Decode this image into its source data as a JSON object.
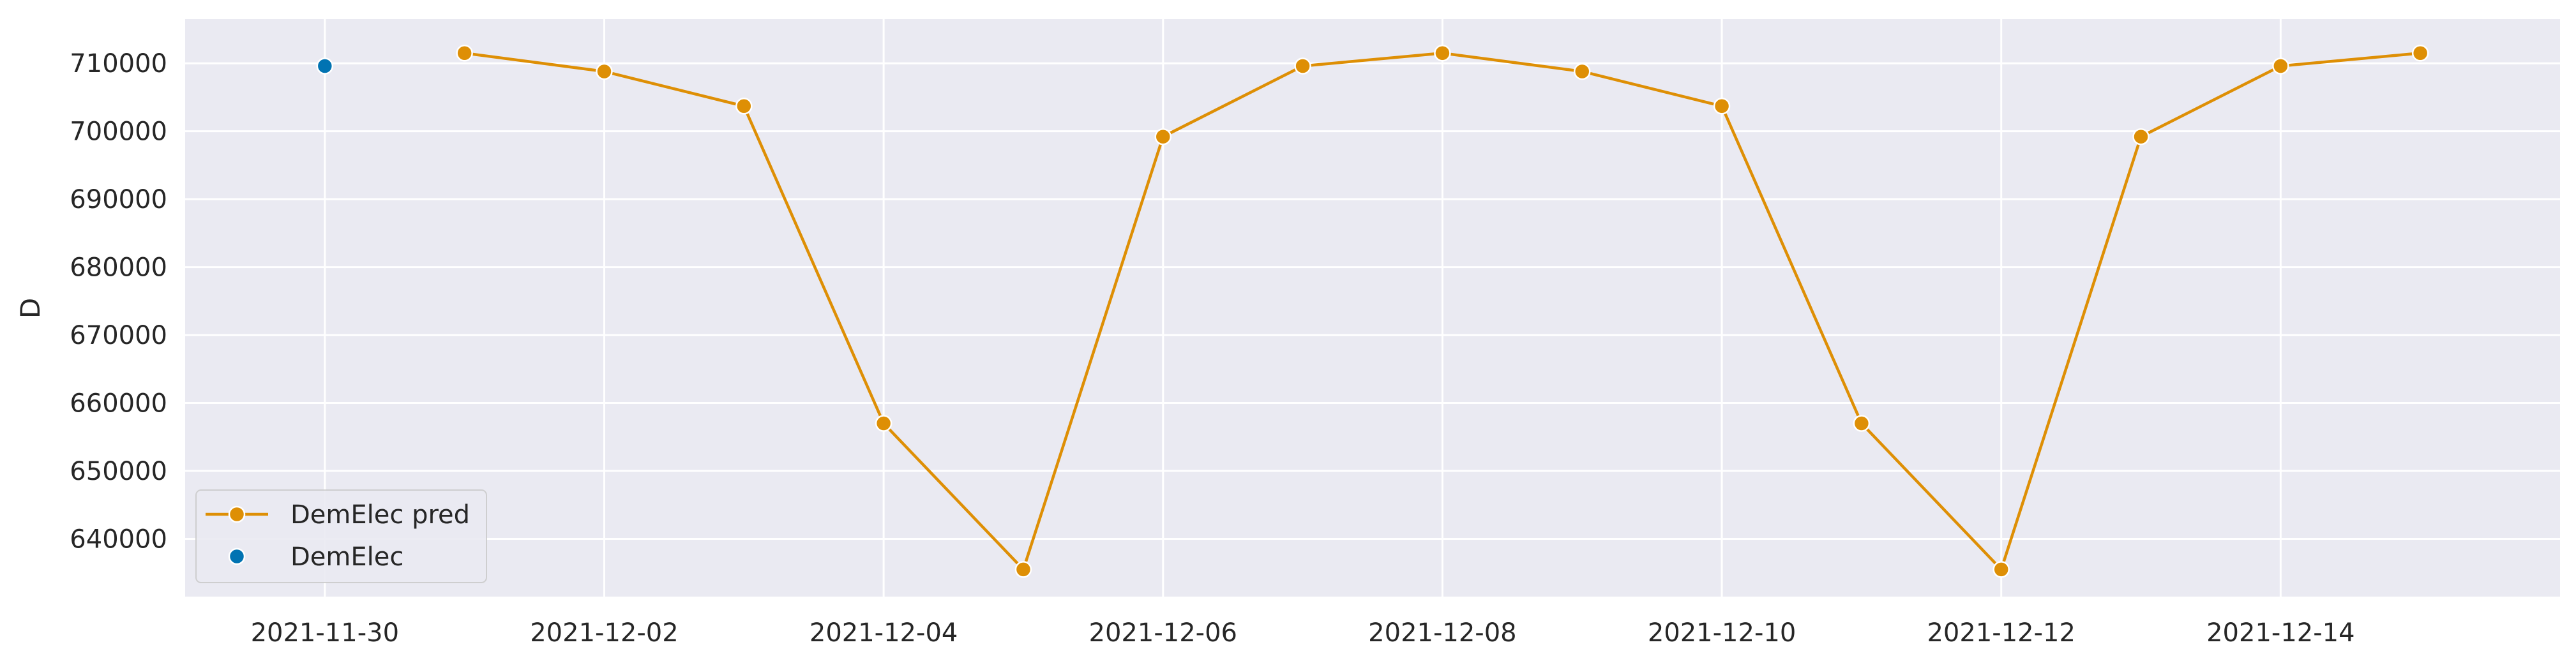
{
  "chart_data": {
    "type": "line",
    "title": "",
    "xlabel": "",
    "ylabel": "D",
    "x_ticks": [
      "2021-11-30",
      "2021-12-02",
      "2021-12-04",
      "2021-12-06",
      "2021-12-08",
      "2021-12-10",
      "2021-12-12",
      "2021-12-14"
    ],
    "y_ticks": [
      640000,
      650000,
      660000,
      670000,
      680000,
      690000,
      700000,
      710000
    ],
    "ylim": [
      631500,
      716500
    ],
    "xlim": [
      "2021-11-29",
      "2021-12-16"
    ],
    "grid": true,
    "legend_position": "lower-left",
    "series": [
      {
        "name": "DemElec pred",
        "style": "line-with-markers",
        "color": "#de8f05",
        "x": [
          "2021-12-01",
          "2021-12-02",
          "2021-12-03",
          "2021-12-04",
          "2021-12-05",
          "2021-12-06",
          "2021-12-07",
          "2021-12-08",
          "2021-12-09",
          "2021-12-10",
          "2021-12-11",
          "2021-12-12",
          "2021-12-13",
          "2021-12-14",
          "2021-12-15"
        ],
        "values": [
          711500,
          708800,
          703700,
          657000,
          635500,
          699200,
          709600,
          711500,
          708800,
          703700,
          657000,
          635500,
          699200,
          709600,
          711500
        ]
      },
      {
        "name": "DemElec",
        "style": "scatter",
        "color": "#0173b2",
        "x": [
          "2021-11-30"
        ],
        "values": [
          709600
        ]
      }
    ],
    "colors": {
      "plot_background": "#eaeaf2",
      "grid": "#ffffff"
    }
  }
}
